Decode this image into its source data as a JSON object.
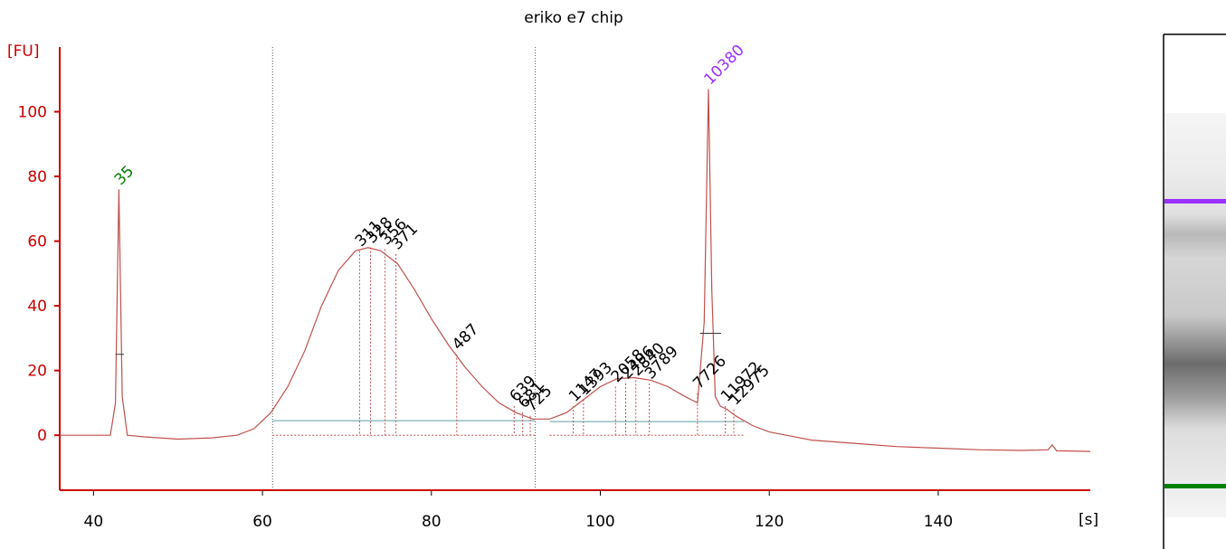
{
  "chart_data": {
    "type": "line",
    "title": "eriko e7 chip",
    "xlabel": "[s]",
    "ylabel": "[FU]",
    "xlim": [
      36,
      158
    ],
    "ylim": [
      -17,
      120
    ],
    "x_ticks": [
      40,
      60,
      80,
      100,
      120,
      140
    ],
    "y_ticks": [
      0,
      20,
      40,
      60,
      80,
      100
    ],
    "colors": {
      "axis": "#cc0000",
      "trace": "#c0504d",
      "marker_peak": "#008000",
      "upper_marker": "#9b30ff",
      "baseline": "#5f9ea0",
      "peak_label": "#000000",
      "gel_background": "#f2f2f2"
    },
    "region_boundaries_x": [
      61.2,
      92.3
    ],
    "series": [
      {
        "x": [
          36,
          42,
          42.6,
          43.0,
          43.4,
          44,
          46,
          50,
          54,
          57,
          59,
          61,
          63,
          65,
          67,
          69,
          71,
          72.5,
          74,
          76,
          78,
          80,
          82,
          84,
          86,
          88,
          90,
          92,
          94,
          96,
          98,
          100,
          102,
          104,
          106,
          108,
          110,
          111.5,
          112.3,
          112.8,
          113.2,
          113.6,
          114.2,
          115,
          116,
          118,
          120,
          122,
          125,
          130,
          135,
          140,
          145,
          150,
          153,
          153.5,
          154,
          158
        ],
        "y": [
          0,
          0,
          10,
          76,
          12,
          0,
          -0.5,
          -1.2,
          -0.8,
          0,
          2,
          7,
          15,
          26,
          40,
          51,
          57,
          58,
          57,
          53,
          45,
          36,
          28,
          21,
          15,
          10,
          7,
          5,
          5,
          7,
          11,
          15,
          17.5,
          17.8,
          17,
          15,
          12,
          10,
          35,
          107,
          45,
          12,
          9,
          8,
          6,
          3,
          1,
          0,
          -1.5,
          -2.5,
          -3.5,
          -4,
          -4.5,
          -4.7,
          -4.5,
          -3,
          -4.8,
          -5
        ]
      }
    ],
    "peaks": [
      {
        "label": "35",
        "x": 43.0,
        "y": 76,
        "type": "marker"
      },
      {
        "label": "311",
        "x": 71.5,
        "y": 57,
        "type": "peak"
      },
      {
        "label": "328",
        "x": 72.8,
        "y": 58,
        "type": "peak"
      },
      {
        "label": "356",
        "x": 74.5,
        "y": 57.5,
        "type": "peak"
      },
      {
        "label": "371",
        "x": 75.8,
        "y": 56,
        "type": "peak"
      },
      {
        "label": "487",
        "x": 83.0,
        "y": 25,
        "type": "peak"
      },
      {
        "label": "639",
        "x": 89.8,
        "y": 9,
        "type": "peak"
      },
      {
        "label": "681",
        "x": 90.8,
        "y": 7,
        "type": "peak"
      },
      {
        "label": "725",
        "x": 91.7,
        "y": 6,
        "type": "peak"
      },
      {
        "label": "1147",
        "x": 96.8,
        "y": 9,
        "type": "peak"
      },
      {
        "label": "1393",
        "x": 98.0,
        "y": 11,
        "type": "peak"
      },
      {
        "label": "2058",
        "x": 101.8,
        "y": 15,
        "type": "peak"
      },
      {
        "label": "2496",
        "x": 103.0,
        "y": 16,
        "type": "peak"
      },
      {
        "label": "2840",
        "x": 104.2,
        "y": 17,
        "type": "peak"
      },
      {
        "label": "3789",
        "x": 105.8,
        "y": 16,
        "type": "peak"
      },
      {
        "label": "7726",
        "x": 111.5,
        "y": 13,
        "type": "peak"
      },
      {
        "label": "10380",
        "x": 112.8,
        "y": 107,
        "type": "marker_upper"
      },
      {
        "label": "11972",
        "x": 114.8,
        "y": 9,
        "type": "peak"
      },
      {
        "label": "12975",
        "x": 115.8,
        "y": 8,
        "type": "peak"
      }
    ],
    "gel": {
      "upper_marker_color": "#9b30ff",
      "lower_marker_color": "#008000"
    }
  }
}
